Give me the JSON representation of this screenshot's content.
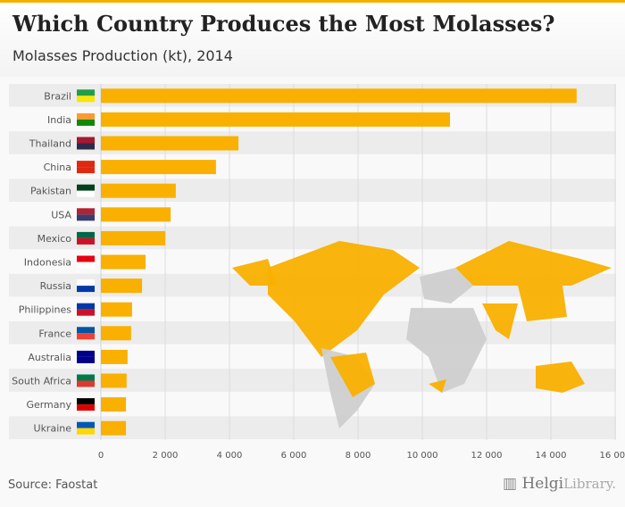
{
  "header": {
    "title": "Which Country Produces the Most Molasses?",
    "subtitle": "Molasses Production (kt), 2014"
  },
  "footer": {
    "source": "Source: Faostat",
    "logo_main": "Helgi",
    "logo_sub": "Library."
  },
  "colors": {
    "bar": "#f9b000",
    "accent": "#f5b000",
    "map_gray": "#cfcfcf"
  },
  "chart_data": {
    "type": "bar",
    "orientation": "horizontal",
    "title": "Which Country Produces the Most Molasses?",
    "subtitle": "Molasses Production (kt), 2014",
    "categories": [
      "Brazil",
      "India",
      "Thailand",
      "China",
      "Pakistan",
      "USA",
      "Mexico",
      "Indonesia",
      "Russia",
      "Philippines",
      "France",
      "Australia",
      "South Africa",
      "Germany",
      "Ukraine"
    ],
    "values": [
      14800,
      10860,
      4280,
      3580,
      2330,
      2170,
      2000,
      1390,
      1280,
      970,
      940,
      830,
      800,
      780,
      780
    ],
    "xlim": [
      0,
      16000
    ],
    "xticks": [
      0,
      2000,
      4000,
      6000,
      8000,
      10000,
      12000,
      14000,
      16000
    ],
    "xtick_labels": [
      "0",
      "2 000",
      "4 000",
      "6 000",
      "8 000",
      "10 000",
      "12 000",
      "14 000",
      "16 000"
    ],
    "grid": true,
    "legend": "none"
  }
}
